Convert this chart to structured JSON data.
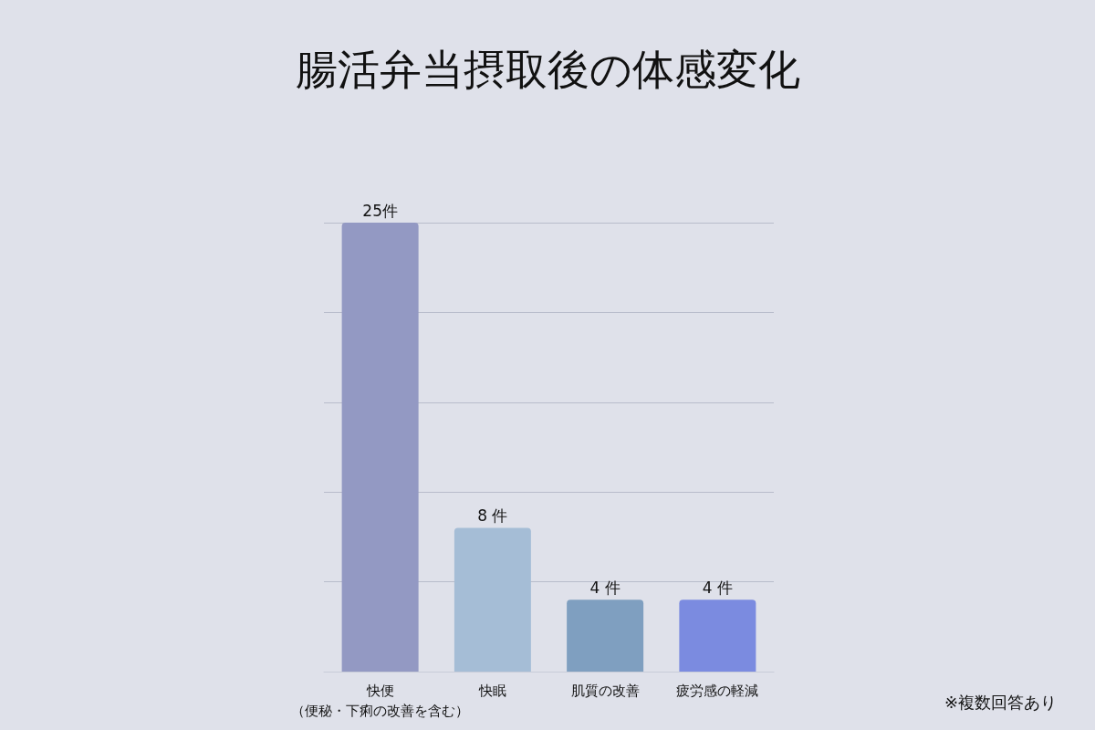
{
  "chart_data": {
    "type": "bar",
    "title": "腸活弁当摂取後の体感変化",
    "categories": [
      "快便（便秘・下痢の改善を含む）",
      "快眠",
      "肌質の改善",
      "疲労感の軽減"
    ],
    "values": [
      25,
      8,
      4,
      4
    ],
    "colors": [
      "#9399c3",
      "#a5bdd6",
      "#7f9fc0",
      "#7b8be0"
    ],
    "value_labels": [
      "25件",
      "8 件",
      "4 件",
      "4 件"
    ],
    "ylim": [
      0,
      25
    ],
    "yticks": [
      {
        "value": 0,
        "label": null
      },
      {
        "value": 5,
        "label": null
      },
      {
        "value": 10,
        "label": null
      },
      {
        "value": 15,
        "label": null
      },
      {
        "value": 20,
        "label": null
      },
      {
        "value": 25,
        "label": null
      }
    ],
    "grid": "y",
    "annotations": [
      "※複数回答あり"
    ]
  }
}
